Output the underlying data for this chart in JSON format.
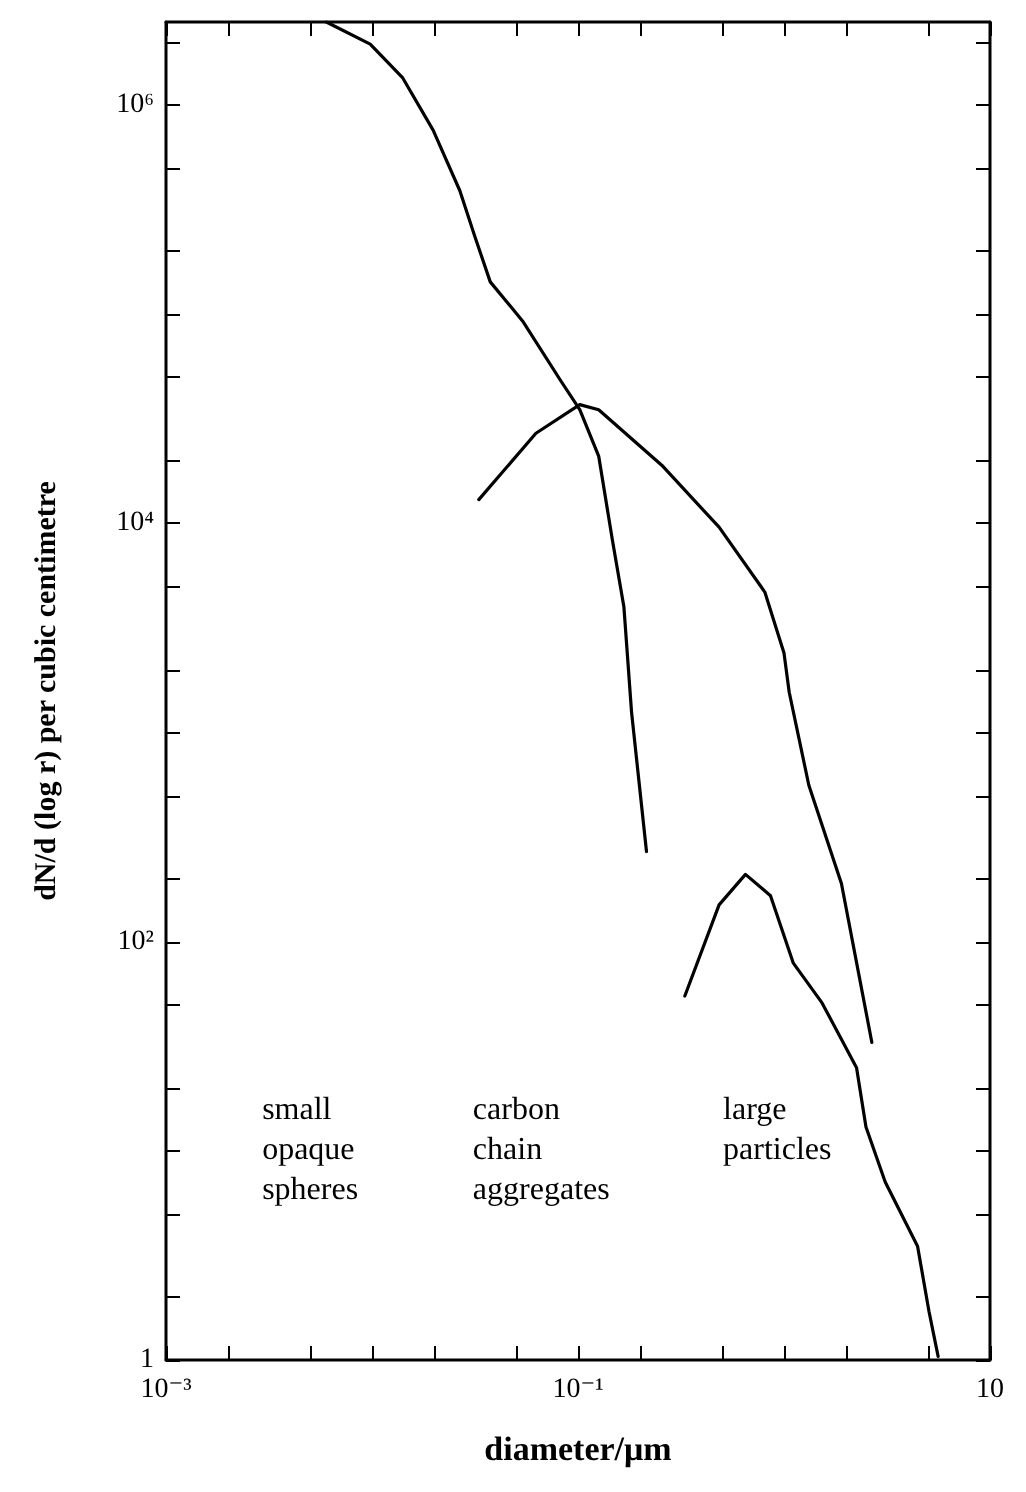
{
  "chart_data": {
    "type": "line",
    "xlabel": "diameter/μm",
    "ylabel": "dN/d (log r) per cubic centimetre",
    "log": "xy",
    "grid": false,
    "marker": "none",
    "line_style": "solid",
    "xlim": [
      0.001,
      10
    ],
    "ylim": [
      1,
      2500000
    ],
    "xticks": [
      {
        "value": 0.001,
        "label": "10⁻³"
      },
      {
        "value": 0.002,
        "label": null
      },
      {
        "value": 0.005,
        "label": null
      },
      {
        "value": 0.01,
        "label": null
      },
      {
        "value": 0.02,
        "label": null
      },
      {
        "value": 0.05,
        "label": null
      },
      {
        "value": 0.1,
        "label": "10⁻¹"
      },
      {
        "value": 0.2,
        "label": null
      },
      {
        "value": 0.5,
        "label": null
      },
      {
        "value": 1,
        "label": null
      },
      {
        "value": 2,
        "label": null
      },
      {
        "value": 5,
        "label": null
      },
      10
    ],
    "yticks": [
      1,
      {
        "value": 2,
        "label": null
      },
      {
        "value": 5,
        "label": null
      },
      {
        "value": 10,
        "label": null
      },
      {
        "value": 20,
        "label": null
      },
      {
        "value": 50,
        "label": null
      },
      {
        "value": 100,
        "label": "10²"
      },
      {
        "value": 200,
        "label": null
      },
      {
        "value": 500,
        "label": null
      },
      {
        "value": 1000,
        "label": null
      },
      {
        "value": 2000,
        "label": null
      },
      {
        "value": 5000,
        "label": null
      },
      {
        "value": 10000,
        "label": "10⁴"
      },
      {
        "value": 20000,
        "label": null
      },
      {
        "value": 50000,
        "label": null
      },
      {
        "value": 100000,
        "label": null
      },
      {
        "value": 200000,
        "label": null
      },
      {
        "value": 500000,
        "label": null
      },
      {
        "value": 1000000,
        "label": "10⁶"
      },
      {
        "value": 2000000,
        "label": null
      }
    ],
    "series": [
      {
        "color": "#000000",
        "x": [
          0.006,
          0.0098,
          0.0141,
          0.0198,
          0.0267,
          0.0316,
          0.0375,
          0.0538,
          0.0826,
          0.102,
          0.126,
          0.147,
          0.167,
          0.182,
          0.215
        ],
        "values": [
          2500000,
          1960000,
          1350000,
          760000,
          390000,
          235000,
          143000,
          93000,
          48000,
          35000,
          21000,
          8300,
          4000,
          1250,
          270
        ]
      },
      {
        "color": "#000000",
        "x": [
          0.033,
          0.0625,
          0.102,
          0.126,
          0.255,
          0.484,
          0.807,
          1.0,
          1.06,
          1.32,
          1.9,
          2.67
        ],
        "values": [
          13000,
          27000,
          37000,
          35000,
          19000,
          9600,
          4700,
          2400,
          1560,
          560,
          190,
          33
        ]
      },
      {
        "color": "#000000",
        "x": [
          0.33,
          0.484,
          0.65,
          0.86,
          1.11,
          1.53,
          2.25,
          2.5,
          3.1,
          4.45,
          5.06,
          5.6
        ],
        "values": [
          55,
          150,
          210,
          166,
          79,
          51,
          25,
          13,
          7.1,
          3.5,
          1.7,
          1.04
        ]
      }
    ],
    "annotations": [
      "small\nopaque\nspheres",
      "carbon\nchain\naggregates",
      "large\nparticles"
    ]
  }
}
